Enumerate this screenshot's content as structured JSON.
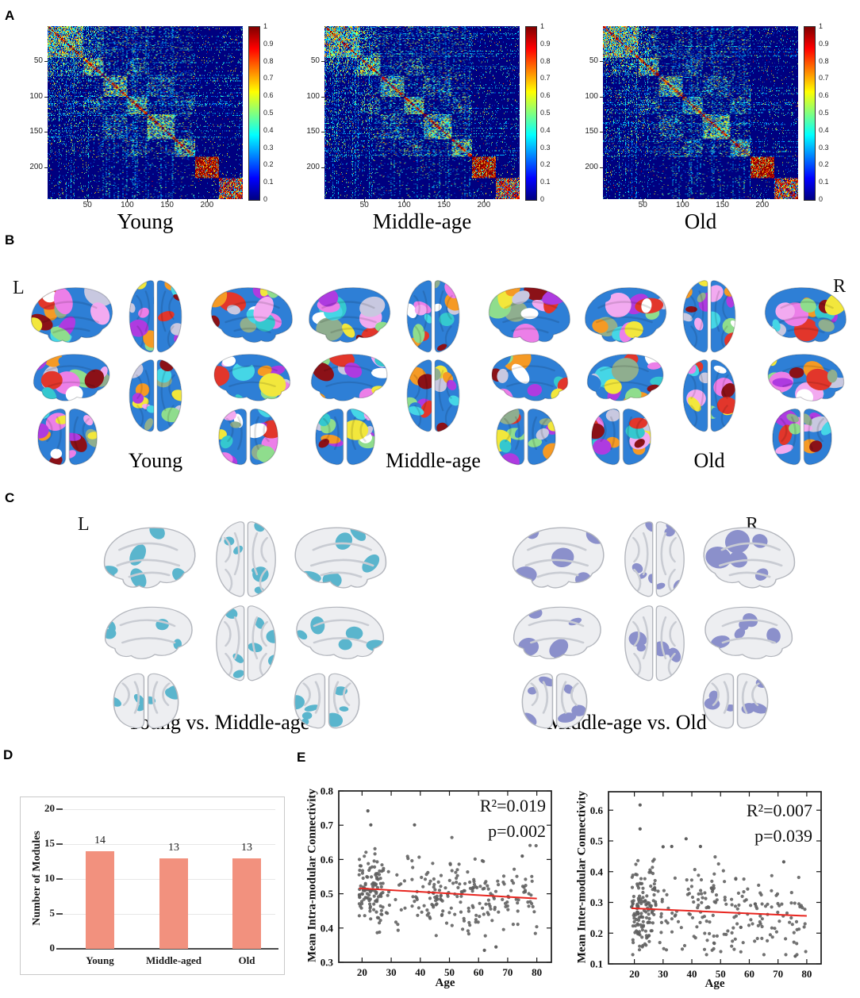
{
  "figure": {
    "panels": {
      "a": "A",
      "b": "B",
      "c": "C",
      "d": "D",
      "e": "E"
    },
    "panelA": {
      "colorbar_ticks": [
        "1",
        "0.9",
        "0.8",
        "0.7",
        "0.6",
        "0.5",
        "0.4",
        "0.3",
        "0.2",
        "0.1",
        "0"
      ]
    },
    "panelB": {
      "left_hemisphere_label": "L",
      "right_hemisphere_label": "R",
      "groups": [
        {
          "label": "Young"
        },
        {
          "label": "Middle-age"
        },
        {
          "label": "Old"
        }
      ],
      "module_colors": [
        "#2e7fd6",
        "#45d6e6",
        "#35c8cf",
        "#f2e73c",
        "#8fdd8d",
        "#ec7fe8",
        "#f2aaf0",
        "#8b1117",
        "#e2362b",
        "#ae3be0",
        "#f59a25",
        "#ffffff",
        "#c8c8e0",
        "#8fae8f"
      ]
    },
    "panelC": {
      "left_hemisphere_label": "L",
      "right_hemisphere_label": "R",
      "base_color": "#edeef1",
      "groups": [
        {
          "label": "Young vs. Middle-age",
          "highlight_color": "#5ab5cd"
        },
        {
          "label": "Middle-age vs. Old",
          "highlight_color": "#8b90cb"
        }
      ]
    }
  },
  "chart_data": [
    {
      "id": "matrix_young",
      "type": "heatmap",
      "title": "Young",
      "size": 245,
      "xticks": [
        50,
        100,
        150,
        200
      ],
      "yticks": [
        50,
        100,
        150,
        200
      ],
      "value_range": [
        0,
        1
      ],
      "colormap": "jet",
      "colorbar_ticks": [
        "1",
        "0.9",
        "0.8",
        "0.7",
        "0.6",
        "0.5",
        "0.4",
        "0.3",
        "0.2",
        "0.1",
        "0"
      ]
    },
    {
      "id": "matrix_middle_age",
      "type": "heatmap",
      "title": "Middle-age",
      "size": 245,
      "xticks": [
        50,
        100,
        150,
        200
      ],
      "yticks": [
        50,
        100,
        150,
        200
      ],
      "value_range": [
        0,
        1
      ],
      "colormap": "jet",
      "colorbar_ticks": [
        "1",
        "0.9",
        "0.8",
        "0.7",
        "0.6",
        "0.5",
        "0.4",
        "0.3",
        "0.2",
        "0.1",
        "0"
      ]
    },
    {
      "id": "matrix_old",
      "type": "heatmap",
      "title": "Old",
      "size": 245,
      "xticks": [
        50,
        100,
        150,
        200
      ],
      "yticks": [
        50,
        100,
        150,
        200
      ],
      "value_range": [
        0,
        1
      ],
      "colormap": "jet",
      "colorbar_ticks": [
        "1",
        "0.9",
        "0.8",
        "0.7",
        "0.6",
        "0.5",
        "0.4",
        "0.3",
        "0.2",
        "0.1",
        "0"
      ]
    },
    {
      "id": "module_count",
      "type": "bar",
      "categories": [
        "Young",
        "Middle-aged",
        "Old"
      ],
      "values": [
        14,
        13,
        13
      ],
      "ylabel": "Number of Modules",
      "ylim": [
        0,
        20
      ],
      "yticks": [
        0,
        5,
        10,
        15,
        20
      ],
      "bar_color": "#f2917e",
      "grid": true
    },
    {
      "id": "intra_modular",
      "type": "scatter",
      "xlabel": "Age",
      "ylabel": "Mean Intra-modular Connectivity",
      "xlim": [
        12,
        85
      ],
      "ylim": [
        0.3,
        0.8
      ],
      "xticks": [
        20,
        30,
        40,
        50,
        60,
        70,
        80
      ],
      "yticks": [
        0.3,
        0.4,
        0.5,
        0.6,
        0.7,
        0.8
      ],
      "r2_label": "R²=0.019",
      "p_label": "p=0.002",
      "n_points": 330,
      "trend_line": {
        "x1": 19,
        "y1": 0.516,
        "x2": 80,
        "y2": 0.486
      },
      "scatter_sd": 0.055,
      "y_clamp": [
        0.33,
        0.75
      ],
      "outlier_points": [
        [
          22,
          0.742
        ],
        [
          23,
          0.701
        ],
        [
          38,
          0.701
        ],
        [
          75,
          0.61
        ],
        [
          62,
          0.335
        ],
        [
          66,
          0.345
        ]
      ],
      "dot_color": "#5f5f5f",
      "line_color": "#e8251f"
    },
    {
      "id": "inter_modular",
      "type": "scatter",
      "xlabel": "Age",
      "ylabel": "Mean Inter-modular Connectivity",
      "xlim": [
        11,
        85
      ],
      "ylim": [
        0.1,
        0.66
      ],
      "xticks": [
        20,
        30,
        40,
        50,
        60,
        70,
        80
      ],
      "yticks": [
        0.1,
        0.2,
        0.3,
        0.4,
        0.5,
        0.6
      ],
      "r2_label": "R²=0.007",
      "p_label": "p=0.039",
      "n_points": 330,
      "trend_line": {
        "x1": 19,
        "y1": 0.281,
        "x2": 80,
        "y2": 0.256
      },
      "scatter_sd": 0.068,
      "y_clamp": [
        0.13,
        0.62
      ],
      "outlier_points": [
        [
          22,
          0.617
        ],
        [
          22,
          0.539
        ],
        [
          38,
          0.507
        ],
        [
          33,
          0.482
        ],
        [
          43,
          0.482
        ],
        [
          30,
          0.481
        ],
        [
          72,
          0.432
        ],
        [
          76,
          0.125
        ]
      ],
      "dot_color": "#5f5f5f",
      "line_color": "#e8251f"
    }
  ]
}
